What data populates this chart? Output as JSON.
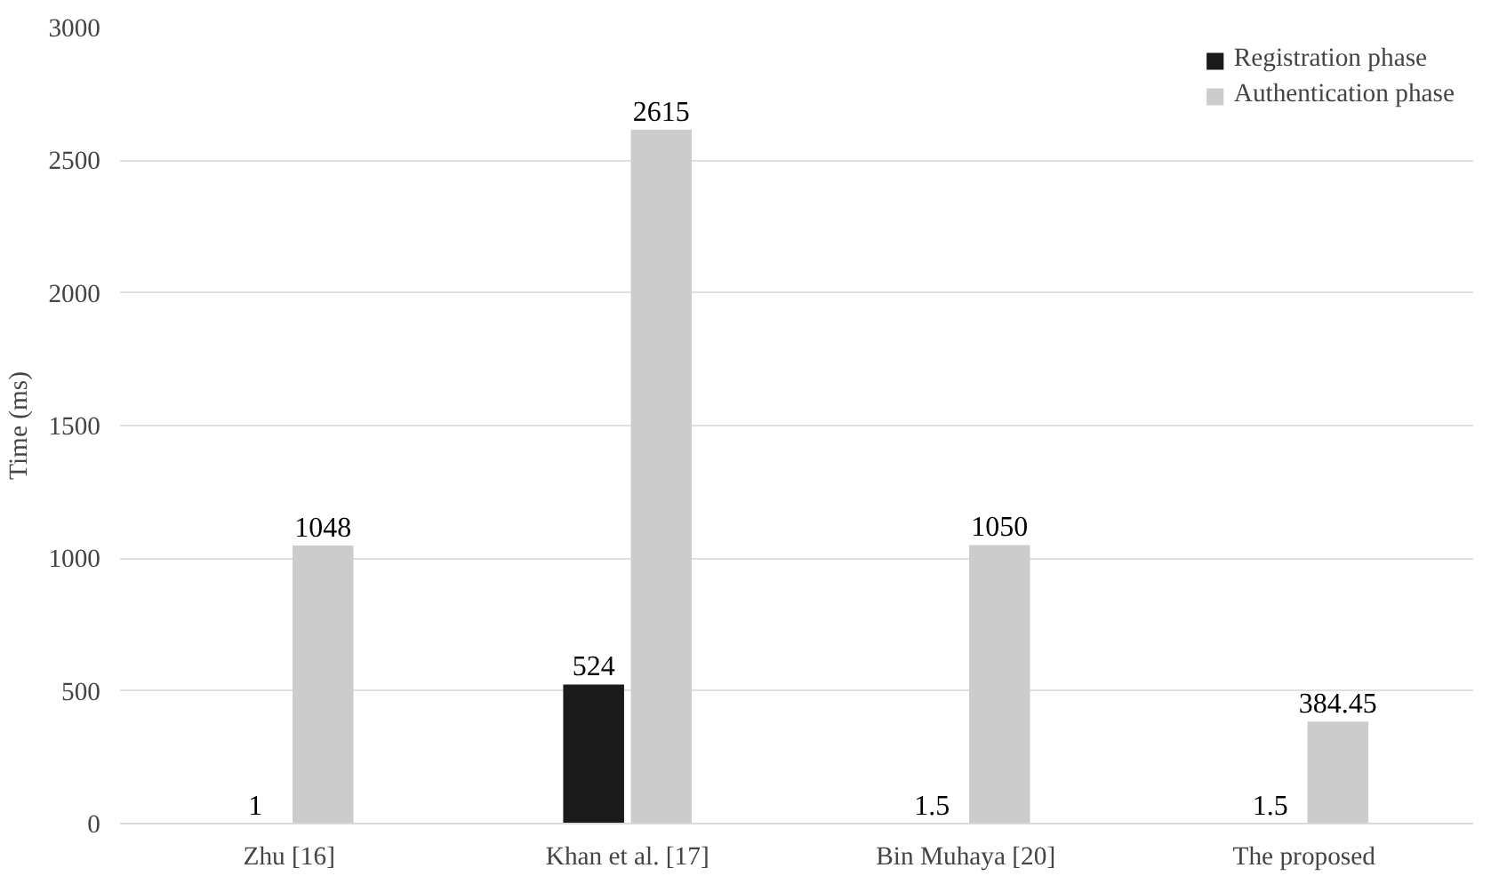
{
  "chart_data": {
    "type": "bar",
    "ylabel": "Time (ms)",
    "categories": [
      "Zhu [16]",
      "Khan et al. [17]",
      "Bin Muhaya [20]",
      "The proposed"
    ],
    "series": [
      {
        "name": "Registration phase",
        "color": "#1a1a1a",
        "values": [
          1,
          524,
          1.5,
          1.5
        ]
      },
      {
        "name": "Authentication phase",
        "color": "#cccccc",
        "values": [
          1048,
          2615,
          1050,
          384.45
        ]
      }
    ],
    "ylim": [
      0,
      3000
    ],
    "yticks": [
      0,
      500,
      1000,
      1500,
      2000,
      2500,
      3000
    ],
    "grid": "y",
    "legend": "top right",
    "data_labels": true
  }
}
